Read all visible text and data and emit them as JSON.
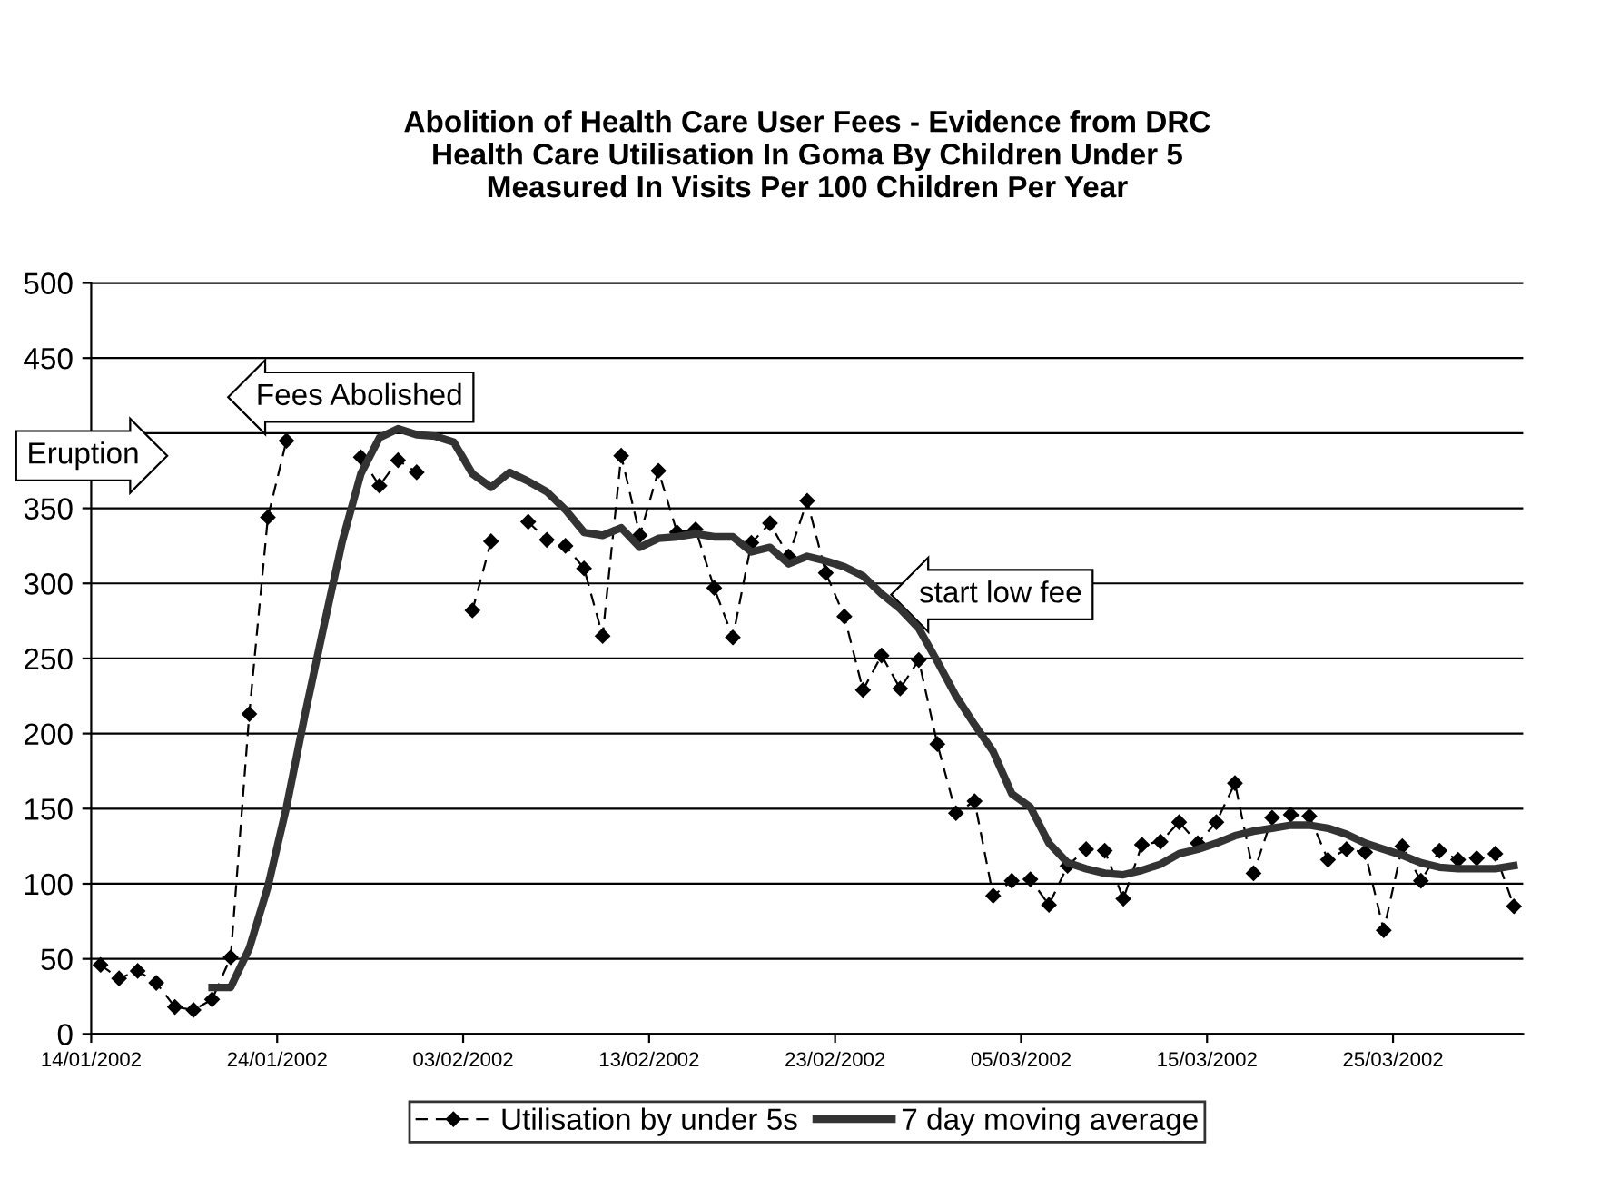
{
  "chart_data": {
    "type": "line",
    "title": "Abolition of Health Care User Fees - Evidence from DRC\nHealth Care Utilisation In Goma By Children Under 5\nMeasured In Visits Per 100 Children Per Year",
    "x": [
      "2002-01-14",
      "2002-01-15",
      "2002-01-16",
      "2002-01-17",
      "2002-01-18",
      "2002-01-19",
      "2002-01-20",
      "2002-01-21",
      "2002-01-22",
      "2002-01-23",
      "2002-01-24",
      "2002-01-25",
      "2002-01-26",
      "2002-01-27",
      "2002-01-28",
      "2002-01-29",
      "2002-01-30",
      "2002-01-31",
      "2002-02-01",
      "2002-02-02",
      "2002-02-03",
      "2002-02-04",
      "2002-02-05",
      "2002-02-06",
      "2002-02-07",
      "2002-02-08",
      "2002-02-09",
      "2002-02-10",
      "2002-02-11",
      "2002-02-12",
      "2002-02-13",
      "2002-02-14",
      "2002-02-15",
      "2002-02-16",
      "2002-02-17",
      "2002-02-18",
      "2002-02-19",
      "2002-02-20",
      "2002-02-21",
      "2002-02-22",
      "2002-02-23",
      "2002-02-24",
      "2002-02-25",
      "2002-02-26",
      "2002-02-27",
      "2002-02-28",
      "2002-03-01",
      "2002-03-02",
      "2002-03-03",
      "2002-03-04",
      "2002-03-05",
      "2002-03-06",
      "2002-03-07",
      "2002-03-08",
      "2002-03-09",
      "2002-03-10",
      "2002-03-11",
      "2002-03-12",
      "2002-03-13",
      "2002-03-14",
      "2002-03-15",
      "2002-03-16",
      "2002-03-17",
      "2002-03-18",
      "2002-03-19",
      "2002-03-20",
      "2002-03-21",
      "2002-03-22",
      "2002-03-23",
      "2002-03-24",
      "2002-03-25",
      "2002-03-26",
      "2002-03-27",
      "2002-03-28",
      "2002-03-29",
      "2002-03-30",
      "2002-03-31"
    ],
    "series": [
      {
        "name": "Utilisation by under 5s",
        "color": "#000000",
        "line_style": "dashed",
        "marker": "diamond",
        "values": [
          46,
          37,
          42,
          34,
          18,
          16,
          23,
          51,
          213,
          344,
          395,
          null,
          null,
          null,
          384,
          365,
          382,
          374,
          null,
          null,
          282,
          328,
          null,
          341,
          329,
          325,
          310,
          265,
          385,
          332,
          375,
          334,
          336,
          297,
          264,
          327,
          340,
          318,
          355,
          307,
          278,
          229,
          252,
          230,
          249,
          193,
          147,
          155,
          92,
          102,
          103,
          86,
          112,
          123,
          122,
          90,
          126,
          128,
          141,
          127,
          141,
          167,
          107,
          144,
          146,
          145,
          116,
          123,
          121,
          69,
          125,
          102,
          122,
          116,
          117,
          120,
          85
        ]
      },
      {
        "name": "7 day moving average",
        "color": "#333333",
        "line_style": "solid",
        "marker": "none",
        "values": [
          null,
          null,
          null,
          null,
          null,
          null,
          31,
          31,
          57,
          98,
          151,
          213,
          271,
          328,
          373,
          397,
          403,
          399,
          398,
          394,
          373,
          364,
          374,
          368,
          361,
          349,
          334,
          332,
          337,
          324,
          330,
          331,
          333,
          331,
          331,
          321,
          324,
          313,
          318,
          315,
          311,
          305,
          293,
          283,
          270,
          248,
          225,
          206,
          188,
          160,
          151,
          127,
          114,
          110,
          107,
          106,
          109,
          113,
          120,
          123,
          127,
          132,
          135,
          137,
          139,
          139,
          137,
          133,
          127,
          123,
          119,
          114,
          111,
          110,
          110,
          110,
          112
        ]
      }
    ],
    "xlim": [
      "2002-01-13T12:00",
      "2002-03-31T12:00"
    ],
    "xticks": [
      {
        "value": "2002-01-13T12:00",
        "label": "14/01/2002"
      },
      {
        "value": "2002-01-23T12:00",
        "label": "24/01/2002"
      },
      {
        "value": "2002-02-02T12:00",
        "label": "03/02/2002"
      },
      {
        "value": "2002-02-12T12:00",
        "label": "13/02/2002"
      },
      {
        "value": "2002-02-22T12:00",
        "label": "23/02/2002"
      },
      {
        "value": "2002-03-04T12:00",
        "label": "05/03/2002"
      },
      {
        "value": "2002-03-14T12:00",
        "label": "15/03/2002"
      },
      {
        "value": "2002-03-24T12:00",
        "label": "25/03/2002"
      }
    ],
    "ylim": [
      0,
      500
    ],
    "yticks": [
      0,
      50,
      100,
      150,
      200,
      250,
      300,
      350,
      {
        "value": 400,
        "label": null
      },
      450,
      500
    ],
    "grid": "y",
    "legend": "bottom",
    "annotations": [
      "Eruption",
      "Fees Abolished",
      "start low fee"
    ]
  }
}
